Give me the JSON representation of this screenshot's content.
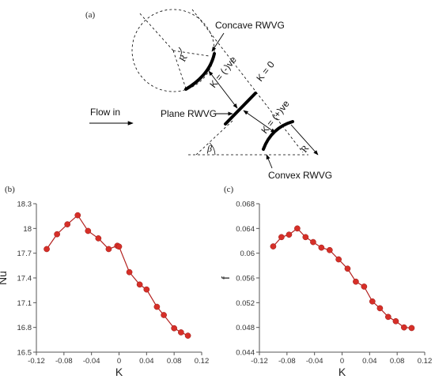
{
  "panel_labels": {
    "a": "(a)",
    "b": "(b)",
    "c": "(c)"
  },
  "schematic": {
    "concave": "Concave RWVG",
    "plane": "Plane RWVG",
    "convex": "Convex RWVG",
    "flow": "Flow in",
    "k_neg": "K = (-)ve",
    "k_zero": "K = 0",
    "k_pos": "K = (+)ve",
    "r_top": "R",
    "r_bottom": "R",
    "beta": "β"
  },
  "colors": {
    "series": "#b3201e",
    "marker": "#d62f28",
    "axis": "#555555",
    "line_art": "#000000"
  },
  "chart_data": [
    {
      "type": "line",
      "panel": "(b)",
      "title": "",
      "xlabel": "K",
      "ylabel": "Nu",
      "xlim": [
        -0.12,
        0.12
      ],
      "ylim": [
        16.5,
        18.3
      ],
      "xticks": [
        "-0.12",
        "-0.08",
        "-0.04",
        "0",
        "0.04",
        "0.08",
        "0.12"
      ],
      "yticks": [
        "16.5",
        "16.8",
        "17.1",
        "17.4",
        "17.7",
        "18",
        "18.3"
      ],
      "grid": false,
      "x": [
        -0.105,
        -0.09,
        -0.075,
        -0.06,
        -0.045,
        -0.03,
        -0.015,
        -0.0025,
        0.0,
        0.015,
        0.03,
        0.04,
        0.055,
        0.065,
        0.08,
        0.09,
        0.1
      ],
      "y": [
        17.75,
        17.93,
        18.05,
        18.16,
        17.97,
        17.88,
        17.75,
        17.79,
        17.78,
        17.47,
        17.32,
        17.26,
        17.05,
        16.95,
        16.79,
        16.74,
        16.7
      ]
    },
    {
      "type": "line",
      "panel": "(c)",
      "title": "",
      "xlabel": "K",
      "ylabel": "f",
      "xlim": [
        -0.12,
        0.12
      ],
      "ylim": [
        0.044,
        0.068
      ],
      "xticks": [
        "-0.12",
        "-0.08",
        "-0.04",
        "0",
        "0.04",
        "0.08",
        "0.12"
      ],
      "yticks": [
        "0.044",
        "0.048",
        "0.052",
        "0.056",
        "0.06",
        "0.064",
        "0.068"
      ],
      "grid": false,
      "x": [
        -0.1,
        -0.088,
        -0.077,
        -0.065,
        -0.053,
        -0.042,
        -0.03,
        -0.018,
        -0.005,
        0.008,
        0.02,
        0.032,
        0.044,
        0.055,
        0.067,
        0.078,
        0.09,
        0.101
      ],
      "y": [
        0.0611,
        0.0626,
        0.063,
        0.064,
        0.0626,
        0.0618,
        0.0609,
        0.0605,
        0.059,
        0.0575,
        0.0554,
        0.0546,
        0.0522,
        0.0511,
        0.0497,
        0.049,
        0.048,
        0.0479
      ]
    }
  ]
}
